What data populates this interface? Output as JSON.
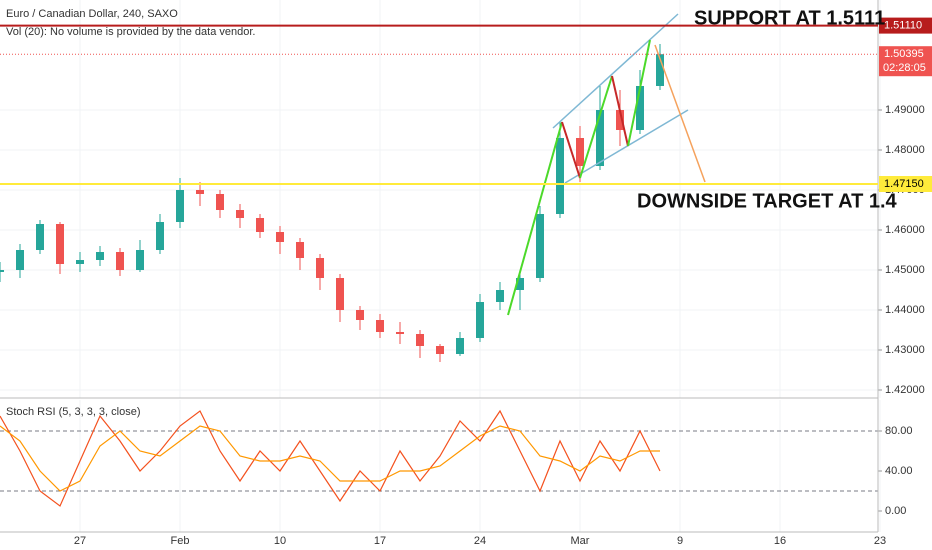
{
  "chart_data": [
    {
      "type": "candlestick",
      "title": "Euro / Canadian Dollar, 240, SAXO",
      "subtitle": "Vol (20): No volume is provided by the data vendor.",
      "annotations": [
        "SUPPORT AT 1.5111",
        "DOWNSIDE TARGET AT 1.4"
      ],
      "x": [
        -4,
        -3,
        -2,
        -1,
        0,
        1,
        2,
        3,
        4,
        5,
        6,
        7,
        8,
        9,
        10,
        11,
        12,
        13,
        14,
        15,
        16,
        17,
        18,
        19,
        20,
        21,
        22,
        23,
        24,
        25,
        26,
        27,
        28,
        29
      ],
      "open": [
        1.4495,
        1.45,
        1.455,
        1.4615,
        1.4515,
        1.4525,
        1.4545,
        1.45,
        1.455,
        1.462,
        1.47,
        1.469,
        1.465,
        1.463,
        1.4595,
        1.457,
        1.453,
        1.448,
        1.44,
        1.4375,
        1.4345,
        1.434,
        1.431,
        1.429,
        1.433,
        1.442,
        1.445,
        1.448,
        1.464,
        1.483,
        1.476,
        1.49,
        1.485,
        1.496
      ],
      "high": [
        1.452,
        1.4565,
        1.4625,
        1.462,
        1.4545,
        1.456,
        1.4555,
        1.4575,
        1.464,
        1.473,
        1.472,
        1.47,
        1.4665,
        1.464,
        1.461,
        1.458,
        1.454,
        1.449,
        1.441,
        1.439,
        1.437,
        1.435,
        1.4315,
        1.4345,
        1.444,
        1.447,
        1.45,
        1.466,
        1.487,
        1.486,
        1.496,
        1.495,
        1.5,
        1.5065
      ],
      "low": [
        1.447,
        1.448,
        1.454,
        1.449,
        1.4495,
        1.451,
        1.4485,
        1.4495,
        1.454,
        1.4605,
        1.466,
        1.463,
        1.4605,
        1.458,
        1.454,
        1.45,
        1.445,
        1.437,
        1.435,
        1.433,
        1.4315,
        1.428,
        1.427,
        1.4285,
        1.432,
        1.44,
        1.44,
        1.447,
        1.463,
        1.472,
        1.475,
        1.481,
        1.484,
        1.495
      ],
      "close": [
        1.45,
        1.455,
        1.4615,
        1.4515,
        1.4525,
        1.4545,
        1.45,
        1.455,
        1.462,
        1.47,
        1.469,
        1.465,
        1.463,
        1.4595,
        1.457,
        1.453,
        1.448,
        1.44,
        1.4375,
        1.4345,
        1.434,
        1.431,
        1.429,
        1.433,
        1.442,
        1.445,
        1.448,
        1.464,
        1.483,
        1.476,
        1.49,
        1.485,
        1.496,
        1.50395
      ],
      "up_color": "#26a69a",
      "down_color": "#ef5350",
      "xlim": [
        -4,
        39.9
      ],
      "xticks": [
        {
          "value": 0,
          "label": "27"
        },
        {
          "value": 5,
          "label": "Feb"
        },
        {
          "value": 10,
          "label": "10"
        },
        {
          "value": 15,
          "label": "17"
        },
        {
          "value": 20,
          "label": "24"
        },
        {
          "value": 25,
          "label": "Mar"
        },
        {
          "value": 30,
          "label": "9"
        },
        {
          "value": 35,
          "label": "16"
        },
        {
          "value": 40,
          "label": "23"
        }
      ],
      "ylim": [
        1.418,
        1.5175
      ],
      "yticks": [
        {
          "value": 1.42,
          "label": "1.42000"
        },
        {
          "value": 1.43,
          "label": "1.43000"
        },
        {
          "value": 1.44,
          "label": "1.44000"
        },
        {
          "value": 1.45,
          "label": "1.45000"
        },
        {
          "value": 1.46,
          "label": "1.46000"
        },
        {
          "value": 1.47,
          "label": "1.47000"
        },
        {
          "value": 1.48,
          "label": "1.48000"
        },
        {
          "value": 1.49,
          "label": "1.49000"
        }
      ],
      "grid": true,
      "levels": [
        {
          "value": 1.5111,
          "label": "1.51110",
          "color": "#b71c1c"
        },
        {
          "value": 1.4715,
          "label": "1.47150",
          "color": "#ffeb3b"
        }
      ],
      "last_price": {
        "value": 1.50395,
        "label": "1.50395",
        "countdown": "02:28:05",
        "color": "#ef5350"
      }
    },
    {
      "type": "line",
      "title": "Stoch RSI (5, 3, 3, 3, close)",
      "series": [
        {
          "color": "#f4511e",
          "values": [
            95,
            60,
            20,
            5,
            50,
            95,
            70,
            40,
            60,
            85,
            100,
            60,
            30,
            60,
            40,
            70,
            40,
            10,
            40,
            20,
            60,
            30,
            55,
            90,
            70,
            100,
            60,
            20,
            70,
            30,
            70,
            40,
            80,
            40
          ]
        },
        {
          "color": "#ff9800",
          "values": [
            85,
            70,
            40,
            20,
            30,
            65,
            80,
            60,
            55,
            70,
            85,
            80,
            55,
            50,
            50,
            55,
            50,
            30,
            30,
            30,
            40,
            40,
            45,
            60,
            75,
            85,
            80,
            55,
            50,
            40,
            55,
            50,
            60,
            60
          ]
        }
      ],
      "ylim": [
        -21,
        111
      ],
      "yticks": [
        {
          "value": 0,
          "label": "0.00"
        },
        {
          "value": 40,
          "label": "40.00"
        },
        {
          "value": 80,
          "label": "80.00"
        }
      ],
      "bands": [
        20,
        80
      ]
    }
  ]
}
